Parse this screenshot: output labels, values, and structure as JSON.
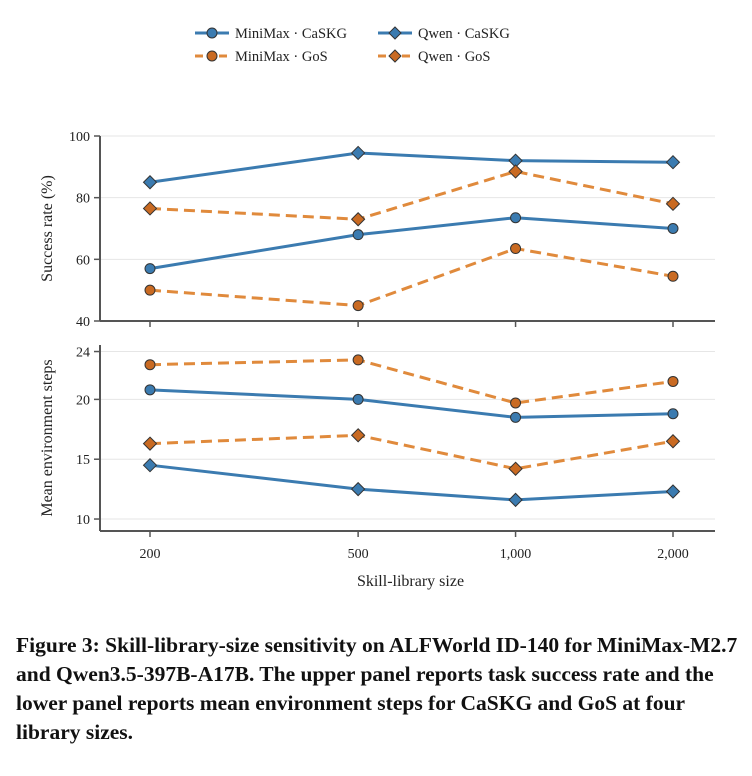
{
  "chart_data": {
    "type": "line",
    "x": [
      200,
      500,
      1000,
      2000
    ],
    "x_tick_labels": [
      "200",
      "500",
      "1,000",
      "2,000"
    ],
    "xlabel": "Skill-library size",
    "x_scale": "log",
    "legend": {
      "placement": "top-center",
      "entries": [
        "MiniMax · CaSKG",
        "Qwen · CaSKG",
        "MiniMax · GoS",
        "Qwen · GoS"
      ]
    },
    "colors": {
      "CaSKG": "#3b7bb0",
      "GoS": "#e08a3c",
      "marker_gos": "#c96a22",
      "axis": "#555555",
      "grid": "#e6e6e6"
    },
    "panels": [
      {
        "id": "success",
        "ylabel": "Success rate (%)",
        "ylim": [
          40,
          100
        ],
        "yticks": [
          40,
          60,
          80,
          100
        ],
        "series": [
          {
            "name": "MiniMax · CaSKG",
            "method": "CaSKG",
            "marker": "circle",
            "dash": false,
            "values": [
              57,
              68,
              73.5,
              70
            ]
          },
          {
            "name": "Qwen · CaSKG",
            "method": "CaSKG",
            "marker": "diamond",
            "dash": false,
            "values": [
              85,
              94.5,
              92,
              91.5
            ]
          },
          {
            "name": "MiniMax · GoS",
            "method": "GoS",
            "marker": "circle",
            "dash": true,
            "values": [
              50,
              45,
              63.5,
              54.5
            ]
          },
          {
            "name": "Qwen · GoS",
            "method": "GoS",
            "marker": "diamond",
            "dash": true,
            "values": [
              76.5,
              73,
              88.5,
              78
            ]
          }
        ]
      },
      {
        "id": "steps",
        "ylabel": "Mean environment steps",
        "ylim": [
          9,
          25.5
        ],
        "yticks": [
          10,
          15,
          20,
          24
        ],
        "series": [
          {
            "name": "MiniMax · CaSKG",
            "method": "CaSKG",
            "marker": "circle",
            "dash": false,
            "values": [
              20.8,
              20,
              18.5,
              18.8
            ]
          },
          {
            "name": "Qwen · CaSKG",
            "method": "CaSKG",
            "marker": "diamond",
            "dash": false,
            "values": [
              14.5,
              12.5,
              11.6,
              12.3
            ]
          },
          {
            "name": "MiniMax · GoS",
            "method": "GoS",
            "marker": "circle",
            "dash": true,
            "values": [
              22.9,
              23.3,
              19.7,
              21.5
            ]
          },
          {
            "name": "Qwen · GoS",
            "method": "GoS",
            "marker": "diamond",
            "dash": true,
            "values": [
              16.3,
              17,
              14.2,
              16.5
            ]
          }
        ]
      }
    ]
  },
  "caption": "Figure 3: Skill-library-size sensitivity on ALFWorld ID-140 for MiniMax-M2.7 and Qwen3.5-397B-A17B. The upper panel reports task success rate and the lower panel reports mean environment steps for CaSKG and GoS at four library sizes."
}
